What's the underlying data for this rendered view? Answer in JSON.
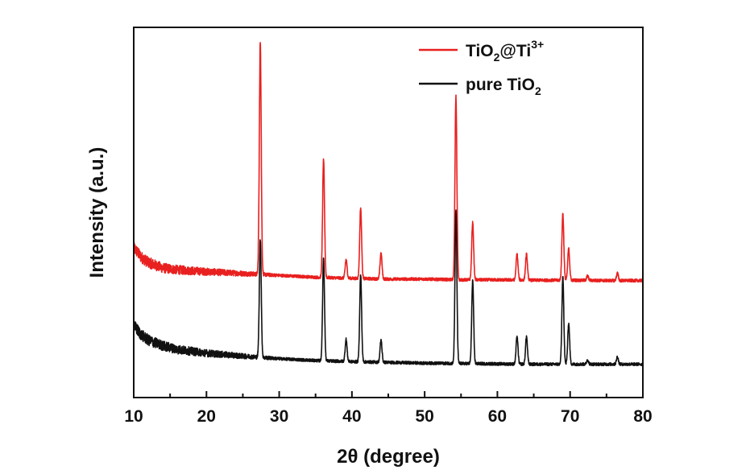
{
  "chart_data": {
    "type": "line",
    "xlabel": "2θ (degree)",
    "ylabel": "Intensity (a.u.)",
    "xlim": [
      10,
      80
    ],
    "ylim": [
      0,
      1.0
    ],
    "x_ticks": [
      10,
      20,
      30,
      40,
      50,
      60,
      70,
      80
    ],
    "y_ticks_shown": false,
    "grid": false,
    "legend_position": "top-right",
    "legend": [
      {
        "base": "TiO",
        "sub": "2",
        "mid": "@Ti",
        "sup": "3+",
        "color": "#e8201f"
      },
      {
        "base": "pure TiO",
        "sub": "2",
        "mid": "",
        "sup": "",
        "color": "#111111"
      }
    ],
    "series": [
      {
        "color": "#e8201f",
        "baseline": [
          [
            10,
            0.405
          ],
          [
            11,
            0.38
          ],
          [
            12,
            0.365
          ],
          [
            14,
            0.35
          ],
          [
            16,
            0.345
          ],
          [
            20,
            0.34
          ],
          [
            25,
            0.335
          ],
          [
            30,
            0.33
          ],
          [
            35,
            0.325
          ],
          [
            40,
            0.322
          ],
          [
            45,
            0.32
          ],
          [
            50,
            0.32
          ],
          [
            55,
            0.318
          ],
          [
            60,
            0.318
          ],
          [
            65,
            0.317
          ],
          [
            70,
            0.317
          ],
          [
            75,
            0.316
          ],
          [
            80,
            0.316
          ]
        ],
        "peaks": [
          {
            "x": 27.4,
            "height": 0.625
          },
          {
            "x": 36.1,
            "height": 0.32
          },
          {
            "x": 39.2,
            "height": 0.05
          },
          {
            "x": 41.2,
            "height": 0.19
          },
          {
            "x": 44.0,
            "height": 0.07
          },
          {
            "x": 54.3,
            "height": 0.495
          },
          {
            "x": 56.6,
            "height": 0.155
          },
          {
            "x": 62.7,
            "height": 0.07
          },
          {
            "x": 64.0,
            "height": 0.07
          },
          {
            "x": 69.0,
            "height": 0.18
          },
          {
            "x": 69.8,
            "height": 0.085
          },
          {
            "x": 72.4,
            "height": 0.012
          },
          {
            "x": 76.5,
            "height": 0.02
          }
        ]
      },
      {
        "color": "#111111",
        "baseline": [
          [
            10,
            0.195
          ],
          [
            11,
            0.17
          ],
          [
            12,
            0.155
          ],
          [
            14,
            0.14
          ],
          [
            16,
            0.13
          ],
          [
            20,
            0.12
          ],
          [
            25,
            0.112
          ],
          [
            30,
            0.105
          ],
          [
            35,
            0.1
          ],
          [
            40,
            0.097
          ],
          [
            45,
            0.095
          ],
          [
            50,
            0.093
          ],
          [
            55,
            0.092
          ],
          [
            60,
            0.091
          ],
          [
            65,
            0.09
          ],
          [
            70,
            0.09
          ],
          [
            75,
            0.09
          ],
          [
            80,
            0.09
          ]
        ],
        "peaks": [
          {
            "x": 27.4,
            "height": 0.32
          },
          {
            "x": 36.1,
            "height": 0.28
          },
          {
            "x": 39.2,
            "height": 0.06
          },
          {
            "x": 41.2,
            "height": 0.235
          },
          {
            "x": 44.0,
            "height": 0.06
          },
          {
            "x": 54.3,
            "height": 0.415
          },
          {
            "x": 56.6,
            "height": 0.225
          },
          {
            "x": 62.7,
            "height": 0.075
          },
          {
            "x": 64.0,
            "height": 0.075
          },
          {
            "x": 69.0,
            "height": 0.235
          },
          {
            "x": 69.8,
            "height": 0.11
          },
          {
            "x": 72.4,
            "height": 0.012
          },
          {
            "x": 76.5,
            "height": 0.02
          }
        ]
      }
    ]
  }
}
